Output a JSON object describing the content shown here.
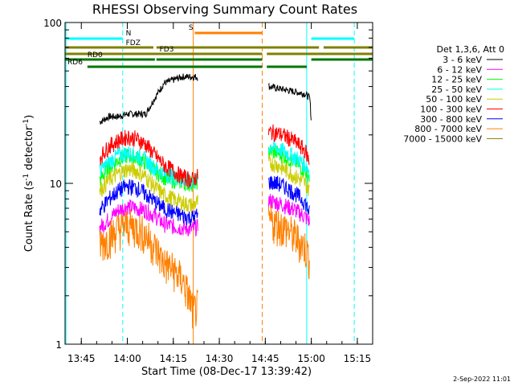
{
  "chart_data": {
    "type": "line",
    "title": "RHESSI Observing Summary Count Rates",
    "xlabel": "Start Time (08-Dec-17 13:39:42)",
    "ylabel": "Count Rate (s⁻¹ detector⁻¹)",
    "ylabel_parts": {
      "main": "Count Rate (s",
      "sup1": "-1",
      "mid": " detector",
      "sup2": "-1",
      "end": ")"
    },
    "xlim": [
      "13:39:42",
      "15:20:00"
    ],
    "ylim": [
      1,
      100
    ],
    "yscale": "log",
    "xticks": [
      "13:45",
      "14:00",
      "14:15",
      "14:30",
      "14:45",
      "15:00",
      "15:15"
    ],
    "yticks": [
      "1",
      "10",
      "100"
    ],
    "footer": "2-Sep-2022 11:01",
    "legend": {
      "placement": "right",
      "header": "Det 1,3,6, Att 0",
      "entries": [
        {
          "label": "3 - 6 keV",
          "color": "#000000"
        },
        {
          "label": "6 - 12 keV",
          "color": "#ff00ff"
        },
        {
          "label": "12 - 25 keV",
          "color": "#00ff00"
        },
        {
          "label": "25 - 50 keV",
          "color": "#00ffff"
        },
        {
          "label": "50 - 100 keV",
          "color": "#cccc00"
        },
        {
          "label": "100 - 300 keV",
          "color": "#ff0000"
        },
        {
          "label": "300 - 800 keV",
          "color": "#0000ff"
        },
        {
          "label": "800 - 7000 keV",
          "color": "#ff8000"
        },
        {
          "label": "7000 - 15000 keV",
          "color": "#808000"
        }
      ]
    },
    "flag_bars": [
      {
        "label": "N",
        "color": "#00ffff",
        "segments": [
          [
            "13:39:42",
            "13:58:30"
          ],
          [
            "15:00:00",
            "15:14:00"
          ]
        ]
      },
      {
        "label": "S",
        "color": "#ff8000",
        "segments": [
          [
            "14:22:00",
            "14:44:00"
          ]
        ]
      },
      {
        "label": "FDZ",
        "color": "#808000",
        "segments": [
          [
            "13:39:42",
            "14:08:30"
          ],
          [
            "14:09:30",
            "15:02:30"
          ],
          [
            "15:04:00",
            "15:20:00"
          ]
        ]
      },
      {
        "label": "FD3",
        "color": "#808000",
        "segments": [
          [
            "13:39:42",
            "14:44:00"
          ],
          [
            "14:45:30",
            "15:20:00"
          ]
        ]
      },
      {
        "label": "RD0",
        "color": "#007700",
        "segments": [
          [
            "13:39:42",
            "14:09:00"
          ],
          [
            "14:09:30",
            "14:44:00"
          ],
          [
            "15:00:00",
            "15:20:00"
          ]
        ]
      },
      {
        "label": "RD6",
        "color": "#007700",
        "segments": [
          [
            "13:47:00",
            "14:44:00"
          ],
          [
            "14:45:30",
            "14:58:30"
          ]
        ]
      }
    ],
    "vlines": [
      {
        "time": "13:40:00",
        "color": "#00ffff",
        "style": "solid"
      },
      {
        "time": "13:58:30",
        "color": "#00ffff",
        "style": "dashed"
      },
      {
        "time": "14:21:30",
        "color": "#ff8000",
        "style": "solid"
      },
      {
        "time": "14:44:00",
        "color": "#ff8000",
        "style": "dashed"
      },
      {
        "time": "14:58:30",
        "color": "#00ffff",
        "style": "solid"
      },
      {
        "time": "15:14:00",
        "color": "#00ffff",
        "style": "dashed"
      }
    ],
    "series": [
      {
        "name": "3 - 6 keV",
        "color": "#000000",
        "points": [
          [
            "13:51:00",
            24
          ],
          [
            "13:54:00",
            26
          ],
          [
            "13:57:00",
            26
          ],
          [
            "14:00:00",
            27
          ],
          [
            "14:03:00",
            27
          ],
          [
            "14:06:00",
            27
          ],
          [
            "14:09:00",
            34
          ],
          [
            "14:12:00",
            42
          ],
          [
            "14:15:00",
            44
          ],
          [
            "14:18:00",
            46
          ],
          [
            "14:21:00",
            46
          ],
          [
            "14:22:30",
            46
          ],
          [
            "14:46:30",
            40
          ],
          [
            "14:49:00",
            39
          ],
          [
            "14:52:00",
            38
          ],
          [
            "14:55:00",
            37
          ],
          [
            "14:58:00",
            36
          ],
          [
            "14:59:30",
            34
          ],
          [
            "15:00:00",
            24
          ]
        ]
      },
      {
        "name": "6 - 12 keV",
        "color": "#ff00ff",
        "points": [
          [
            "13:51:00",
            5.3
          ],
          [
            "13:54:00",
            6.0
          ],
          [
            "13:57:00",
            6.8
          ],
          [
            "14:00:00",
            7.2
          ],
          [
            "14:03:00",
            7.0
          ],
          [
            "14:06:00",
            6.8
          ],
          [
            "14:09:00",
            6.3
          ],
          [
            "14:12:00",
            5.6
          ],
          [
            "14:15:00",
            5.4
          ],
          [
            "14:18:00",
            5.3
          ],
          [
            "14:21:00",
            5.2
          ],
          [
            "14:46:30",
            7.8
          ],
          [
            "14:49:00",
            7.6
          ],
          [
            "14:52:00",
            7.2
          ],
          [
            "14:55:00",
            6.8
          ],
          [
            "14:58:00",
            6.2
          ],
          [
            "14:59:30",
            5.8
          ]
        ]
      },
      {
        "name": "12 - 25 keV",
        "color": "#00ff00",
        "points": [
          [
            "13:51:00",
            10.5
          ],
          [
            "13:54:00",
            12.5
          ],
          [
            "13:57:00",
            14
          ],
          [
            "14:00:00",
            15
          ],
          [
            "14:03:00",
            14.5
          ],
          [
            "14:06:00",
            13.5
          ],
          [
            "14:09:00",
            12
          ],
          [
            "14:12:00",
            11
          ],
          [
            "14:15:00",
            10.5
          ],
          [
            "14:18:00",
            10.2
          ],
          [
            "14:21:00",
            10
          ],
          [
            "14:46:30",
            16
          ],
          [
            "14:49:00",
            15.5
          ],
          [
            "14:52:00",
            14.5
          ],
          [
            "14:55:00",
            13.5
          ],
          [
            "14:58:00",
            12
          ],
          [
            "14:59:30",
            11
          ]
        ]
      },
      {
        "name": "25 - 50 keV",
        "color": "#00ffff",
        "points": [
          [
            "13:51:00",
            12
          ],
          [
            "13:54:00",
            13.5
          ],
          [
            "13:57:00",
            15
          ],
          [
            "14:00:00",
            15.5
          ],
          [
            "14:03:00",
            15
          ],
          [
            "14:06:00",
            14
          ],
          [
            "14:09:00",
            12.5
          ],
          [
            "14:12:00",
            11.5
          ],
          [
            "14:15:00",
            11
          ],
          [
            "14:18:00",
            10.5
          ],
          [
            "14:21:00",
            10.2
          ],
          [
            "14:46:30",
            17
          ],
          [
            "14:49:00",
            16.5
          ],
          [
            "14:52:00",
            15.5
          ],
          [
            "14:55:00",
            14.5
          ],
          [
            "14:58:00",
            13
          ],
          [
            "14:59:30",
            12
          ]
        ]
      },
      {
        "name": "50 - 100 keV",
        "color": "#cccc00",
        "points": [
          [
            "13:51:00",
            9
          ],
          [
            "13:54:00",
            10.5
          ],
          [
            "13:57:00",
            11.5
          ],
          [
            "14:00:00",
            12.3
          ],
          [
            "14:03:00",
            12
          ],
          [
            "14:06:00",
            11
          ],
          [
            "14:09:00",
            9.5
          ],
          [
            "14:12:00",
            8.5
          ],
          [
            "14:15:00",
            8
          ],
          [
            "14:18:00",
            7.6
          ],
          [
            "14:21:00",
            7.3
          ],
          [
            "14:46:30",
            13.5
          ],
          [
            "14:49:00",
            13
          ],
          [
            "14:52:00",
            12
          ],
          [
            "14:55:00",
            11
          ],
          [
            "14:58:00",
            10
          ],
          [
            "14:59:30",
            9
          ]
        ]
      },
      {
        "name": "100 - 300 keV",
        "color": "#ff0000",
        "points": [
          [
            "13:51:00",
            14.5
          ],
          [
            "13:54:00",
            17
          ],
          [
            "13:57:00",
            18.5
          ],
          [
            "14:00:00",
            19.5
          ],
          [
            "14:03:00",
            19
          ],
          [
            "14:06:00",
            17.5
          ],
          [
            "14:09:00",
            15
          ],
          [
            "14:12:00",
            13
          ],
          [
            "14:15:00",
            12
          ],
          [
            "14:18:00",
            11
          ],
          [
            "14:21:00",
            10.5
          ],
          [
            "14:46:30",
            21
          ],
          [
            "14:49:00",
            20.5
          ],
          [
            "14:52:00",
            19.5
          ],
          [
            "14:55:00",
            18
          ],
          [
            "14:58:00",
            16
          ],
          [
            "14:59:30",
            13.5
          ]
        ]
      },
      {
        "name": "300 - 800 keV",
        "color": "#0000ff",
        "points": [
          [
            "13:51:00",
            6.8
          ],
          [
            "13:54:00",
            8
          ],
          [
            "13:57:00",
            9
          ],
          [
            "14:00:00",
            9.6
          ],
          [
            "14:03:00",
            9.4
          ],
          [
            "14:06:00",
            8.6
          ],
          [
            "14:09:00",
            7.7
          ],
          [
            "14:12:00",
            7
          ],
          [
            "14:15:00",
            6.6
          ],
          [
            "14:18:00",
            6.3
          ],
          [
            "14:21:00",
            6.1
          ],
          [
            "14:46:30",
            10.2
          ],
          [
            "14:49:00",
            10
          ],
          [
            "14:52:00",
            9.4
          ],
          [
            "14:55:00",
            8.6
          ],
          [
            "14:58:00",
            7.6
          ],
          [
            "14:59:30",
            6.5
          ]
        ]
      },
      {
        "name": "800 - 7000 keV",
        "color": "#ff8000",
        "points": [
          [
            "13:51:00",
            4.2
          ],
          [
            "13:54:00",
            4.6
          ],
          [
            "13:57:00",
            5.2
          ],
          [
            "14:00:00",
            5.5
          ],
          [
            "14:03:00",
            5.3
          ],
          [
            "14:06:00",
            4.8
          ],
          [
            "14:09:00",
            4.0
          ],
          [
            "14:12:00",
            3.2
          ],
          [
            "14:15:00",
            2.9
          ],
          [
            "14:18:00",
            2.5
          ],
          [
            "14:20:00",
            2.0
          ],
          [
            "14:21:30",
            1.6
          ],
          [
            "14:46:30",
            5.8
          ],
          [
            "14:49:00",
            5.6
          ],
          [
            "14:52:00",
            5.2
          ],
          [
            "14:55:00",
            4.6
          ],
          [
            "14:58:00",
            4.0
          ],
          [
            "14:59:30",
            3.4
          ]
        ]
      }
    ]
  }
}
